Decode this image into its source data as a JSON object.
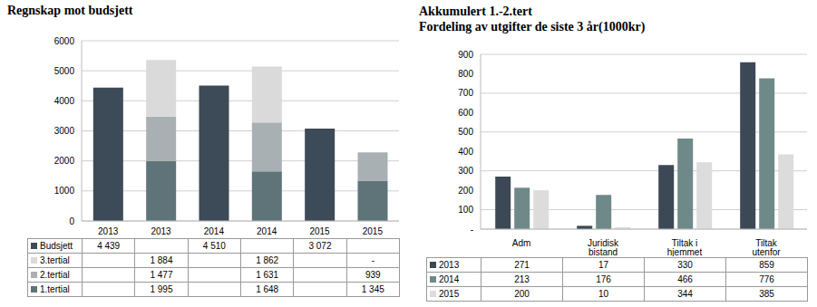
{
  "chart_data": [
    {
      "type": "bar",
      "title": "Regnskap mot budsjett",
      "stacked": true,
      "grid": true,
      "categories": [
        "2013",
        "2013",
        "2014",
        "2014",
        "2015",
        "2015"
      ],
      "ylim": [
        0,
        6000
      ],
      "yticks": [
        0,
        1000,
        2000,
        3000,
        4000,
        5000,
        6000
      ],
      "series": [
        {
          "name": "Budsjett",
          "color": "#3d4a57",
          "values": [
            4439,
            null,
            4510,
            null,
            3072,
            null
          ],
          "value_labels": [
            "4 439",
            null,
            "4 510",
            null,
            "3 072",
            null
          ]
        },
        {
          "name": "3.tertial",
          "color": "#dadada",
          "values": [
            null,
            1884,
            null,
            1862,
            null,
            null
          ],
          "value_labels": [
            null,
            "1 884",
            null,
            "1 862",
            null,
            "-"
          ]
        },
        {
          "name": "2.tertial",
          "color": "#a9b0b3",
          "values": [
            null,
            1477,
            null,
            1631,
            null,
            939
          ],
          "value_labels": [
            null,
            "1 477",
            null,
            "1 631",
            null,
            "939"
          ]
        },
        {
          "name": "1.tertial",
          "color": "#5f7479",
          "values": [
            null,
            1995,
            null,
            1648,
            null,
            1345
          ],
          "value_labels": [
            null,
            "1 995",
            null,
            "1 648",
            null,
            "1 345"
          ]
        }
      ]
    },
    {
      "type": "bar",
      "title": "Akkumulert 1.-2.tert",
      "subtitle": "Fordeling av utgifter de siste 3 år(1000kr)",
      "grid": true,
      "categories": [
        "Adm",
        "Juridisk bistand",
        "Tiltak i hjemmet",
        "Tiltak utenfor hjemmet"
      ],
      "ylim": [
        0,
        900
      ],
      "yticks": [
        {
          "value": 0,
          "label": "-"
        },
        100,
        200,
        300,
        400,
        500,
        600,
        700,
        800,
        900
      ],
      "series": [
        {
          "name": "2013",
          "color": "#3c4855",
          "values": [
            271,
            17,
            330,
            859
          ]
        },
        {
          "name": "2014",
          "color": "#6f8988",
          "values": [
            213,
            176,
            466,
            776
          ]
        },
        {
          "name": "2015",
          "color": "#dcdcdc",
          "values": [
            200,
            10,
            344,
            385
          ]
        }
      ]
    }
  ]
}
